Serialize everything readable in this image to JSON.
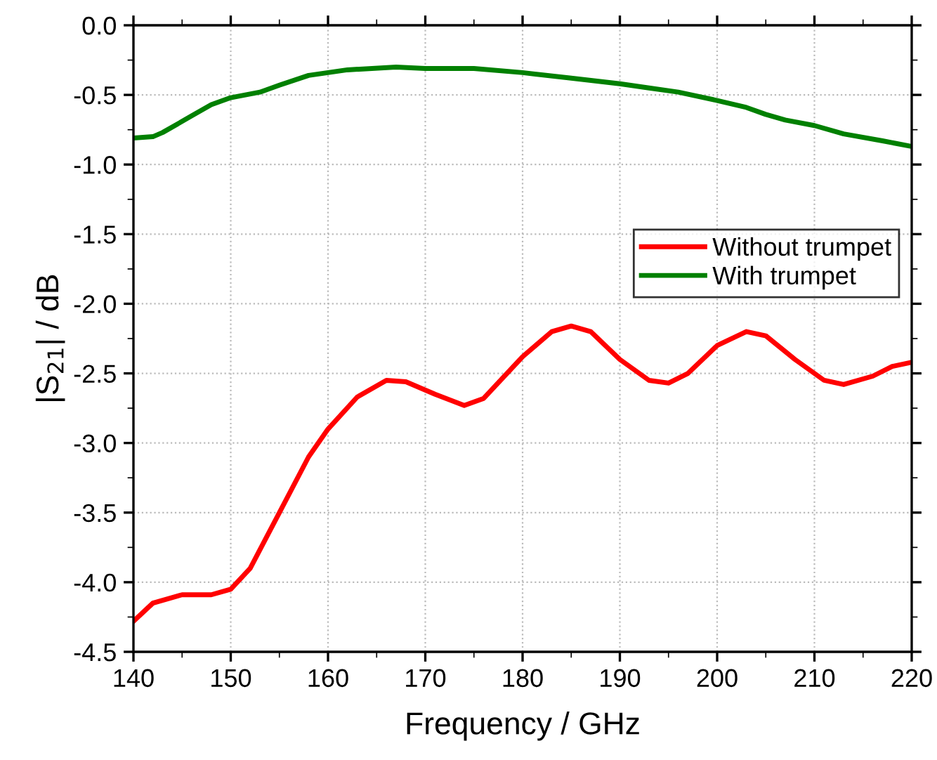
{
  "chart_data": {
    "type": "line",
    "xlabel": "Frequency / GHz",
    "ylabel": "|S$_{21}$| / dB",
    "xlim": [
      140,
      220
    ],
    "ylim": [
      -4.5,
      0.0
    ],
    "xticks": [
      140,
      150,
      160,
      170,
      180,
      190,
      200,
      210,
      220
    ],
    "yticks": [
      {
        "value": -4.5,
        "label": "-4.5"
      },
      {
        "value": -4.0,
        "label": "-4.0"
      },
      {
        "value": -3.5,
        "label": "-3.5"
      },
      {
        "value": -3.0,
        "label": "-3.0"
      },
      {
        "value": -2.5,
        "label": "-2.5"
      },
      {
        "value": -2.0,
        "label": "-2.0"
      },
      {
        "value": -1.5,
        "label": "-1.5"
      },
      {
        "value": -1.0,
        "label": "-1.0"
      },
      {
        "value": -0.5,
        "label": "-0.5"
      },
      {
        "value": 0.0,
        "label": "0.0"
      }
    ],
    "grid": true,
    "legend": "right",
    "marker": "none",
    "line_style": "solid",
    "series": [
      {
        "name": "Without trumpet",
        "color": "#ff0000",
        "x": [
          140,
          142,
          145,
          148,
          150,
          152,
          155,
          158,
          160,
          163,
          166,
          168,
          171,
          174,
          176,
          180,
          183,
          185,
          187,
          190,
          193,
          195,
          197,
          200,
          203,
          205,
          208,
          211,
          213,
          216,
          218,
          220
        ],
        "values": [
          -4.28,
          -4.15,
          -4.09,
          -4.09,
          -4.05,
          -3.9,
          -3.5,
          -3.1,
          -2.9,
          -2.67,
          -2.55,
          -2.56,
          -2.65,
          -2.73,
          -2.68,
          -2.38,
          -2.2,
          -2.16,
          -2.2,
          -2.4,
          -2.55,
          -2.57,
          -2.5,
          -2.3,
          -2.2,
          -2.23,
          -2.4,
          -2.55,
          -2.58,
          -2.52,
          -2.45,
          -2.42
        ]
      },
      {
        "name": "With trumpet",
        "color": "#008000",
        "x": [
          140,
          142,
          143,
          146,
          148,
          150,
          153,
          155,
          158,
          162,
          167,
          170,
          175,
          180,
          185,
          190,
          193,
          196,
          200,
          203,
          205,
          207,
          210,
          213,
          217,
          220
        ],
        "values": [
          -0.81,
          -0.8,
          -0.77,
          -0.65,
          -0.57,
          -0.52,
          -0.48,
          -0.43,
          -0.36,
          -0.32,
          -0.3,
          -0.31,
          -0.31,
          -0.34,
          -0.38,
          -0.42,
          -0.45,
          -0.48,
          -0.54,
          -0.59,
          -0.64,
          -0.68,
          -0.72,
          -0.78,
          -0.83,
          -0.87
        ]
      }
    ]
  }
}
